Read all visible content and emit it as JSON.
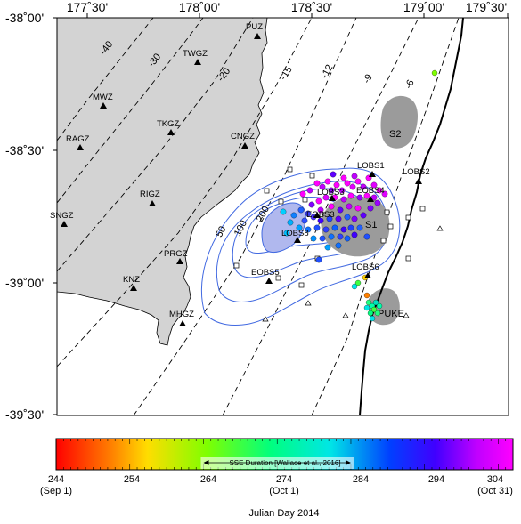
{
  "map": {
    "lon_ticks": [
      "177˚30'",
      "178˚00'",
      "178˚30'",
      "179˚00'",
      "179˚30'"
    ],
    "lat_ticks": [
      "-38˚00'",
      "-38˚30'",
      "-39˚00'",
      "-39˚30'"
    ],
    "land_stations": [
      {
        "name": "PUZ",
        "lon": 178.25,
        "lat": -38.05
      },
      {
        "name": "TWGZ",
        "lon": 177.97,
        "lat": -38.16
      },
      {
        "name": "MWZ",
        "lon": 177.34,
        "lat": -38.32
      },
      {
        "name": "TKGZ",
        "lon": 177.83,
        "lat": -38.41
      },
      {
        "name": "RAGZ",
        "lon": 177.13,
        "lat": -38.53
      },
      {
        "name": "CNGZ",
        "lon": 178.18,
        "lat": -38.51
      },
      {
        "name": "RIGZ",
        "lon": 177.76,
        "lat": -38.79
      },
      {
        "name": "SNGZ",
        "lon": 176.99,
        "lat": -38.92
      },
      {
        "name": "PRGZ",
        "lon": 177.88,
        "lat": -39.07
      },
      {
        "name": "KNZ",
        "lon": 177.58,
        "lat": -39.17
      },
      {
        "name": "MHGZ",
        "lon": 177.92,
        "lat": -39.35
      }
    ],
    "obs_stations": [
      {
        "name": "LOBS1",
        "lon": 178.99,
        "lat": -38.62
      },
      {
        "name": "LOBS2",
        "lon": 179.38,
        "lat": -38.65
      },
      {
        "name": "LOBS3",
        "lon": 178.71,
        "lat": -38.73
      },
      {
        "name": "EOBS4",
        "lon": 178.98,
        "lat": -38.76
      },
      {
        "name": "EOBS3",
        "lon": 178.73,
        "lat": -38.81
      },
      {
        "name": "LOBS8",
        "lon": 178.55,
        "lat": -38.92
      },
      {
        "name": "EOBS5",
        "lon": 178.23,
        "lat": -39.07
      },
      {
        "name": "LOBS6",
        "lon": 178.91,
        "lat": -39.05
      }
    ],
    "subduction_contours": [
      "-40",
      "-30",
      "-20",
      "-15",
      "-12",
      "-9",
      "-6"
    ],
    "sse_contours": [
      "50",
      "100",
      "200"
    ],
    "regions": [
      "S1",
      "S2",
      "PUKE"
    ],
    "colors": {
      "land": "#d3d3d3",
      "sse_contour": "#4169e1",
      "sse_core": "#b0b8ee",
      "patch": "#9b9b9b",
      "trench": "#000000"
    }
  },
  "colorbar": {
    "ticks": [
      "244",
      "254",
      "264",
      "274",
      "284",
      "294",
      "304"
    ],
    "tick_days": [
      244,
      254,
      264,
      274,
      284,
      294,
      304
    ],
    "sublabels": [
      {
        "text": "(Sep 1)",
        "day": 244
      },
      {
        "text": "(Oct 1)",
        "day": 274
      },
      {
        "text": "(Oct 31)",
        "day": 304
      }
    ],
    "sse_label": "SSE Duration [Wallace et al., 2016]",
    "sse_start_day": 264,
    "sse_end_day": 284,
    "xlabel": "Julian Day 2014"
  }
}
